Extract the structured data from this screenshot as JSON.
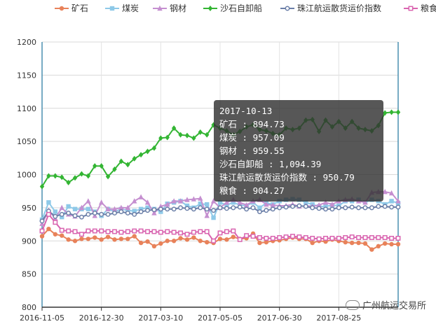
{
  "chart_data": {
    "type": "line",
    "title": "",
    "xlabel": "",
    "ylabel": "",
    "ylim": [
      800,
      1200
    ],
    "yticks": [
      800,
      850,
      900,
      950,
      1000,
      1050,
      1100,
      1150,
      1200
    ],
    "xticks": [
      "2016-11-05",
      "2016-12-30",
      "2017-03-10",
      "2017-05-05",
      "2017-06-30",
      "2017-08-25"
    ],
    "grid": true,
    "legend_position": "top",
    "series": [
      {
        "name": "矿石",
        "color": "#e8825a",
        "marker": "circle",
        "values": [
          907,
          918,
          910,
          908,
          902,
          900,
          903,
          903,
          905,
          902,
          906,
          902,
          903,
          903,
          907,
          897,
          899,
          892,
          896,
          900,
          900,
          904,
          902,
          905,
          900,
          898,
          897,
          903,
          902,
          906,
          903,
          904,
          911,
          897,
          898,
          900,
          901,
          903,
          905,
          903,
          903,
          897,
          900,
          899,
          902,
          900,
          898,
          897,
          897,
          896,
          887,
          892,
          896,
          895,
          895
        ]
      },
      {
        "name": "煤炭",
        "color": "#8ec9e8",
        "marker": "square",
        "values": [
          932,
          958,
          944,
          936,
          952,
          948,
          948,
          948,
          944,
          938,
          948,
          944,
          948,
          946,
          945,
          948,
          950,
          948,
          944,
          956,
          958,
          960,
          953,
          950,
          956,
          955,
          935,
          958,
          954,
          958,
          954,
          953,
          958,
          950,
          957,
          955,
          960,
          962,
          963,
          962,
          958,
          955,
          952,
          952,
          954,
          953,
          960,
          960,
          962,
          958,
          962,
          960,
          955,
          960,
          957
        ]
      },
      {
        "name": "钢材",
        "color": "#c58fd0",
        "marker": "triangle",
        "values": [
          926,
          946,
          934,
          950,
          940,
          937,
          950,
          960,
          938,
          958,
          948,
          948,
          950,
          950,
          960,
          966,
          958,
          942,
          952,
          955,
          960,
          960,
          962,
          963,
          964,
          938,
          960,
          950,
          958,
          962,
          958,
          954,
          960,
          962,
          955,
          954,
          953,
          953,
          955,
          952,
          953,
          952,
          954,
          958,
          955,
          960,
          962,
          963,
          960,
          958,
          973,
          974,
          974,
          972,
          960
        ]
      },
      {
        "name": "沙石自卸船",
        "color": "#33b533",
        "marker": "diamond",
        "values": [
          982,
          998,
          998,
          996,
          988,
          995,
          1001,
          998,
          1013,
          1013,
          997,
          1008,
          1020,
          1015,
          1024,
          1030,
          1035,
          1040,
          1055,
          1056,
          1070,
          1060,
          1059,
          1055,
          1064,
          1060,
          1075,
          1070,
          1066,
          1060,
          1065,
          1072,
          1075,
          1068,
          1066,
          1062,
          1060,
          1070,
          1068,
          1070,
          1082,
          1083,
          1065,
          1082,
          1072,
          1080,
          1070,
          1080,
          1070,
          1068,
          1066,
          1074,
          1093,
          1094,
          1094
        ]
      },
      {
        "name": "珠江航运散货运价指数",
        "color": "#6b7fa8",
        "marker": "ring",
        "values": [
          930,
          945,
          937,
          940,
          942,
          938,
          936,
          940,
          942,
          940,
          940,
          942,
          944,
          942,
          940,
          944,
          946,
          947,
          948,
          948,
          948,
          950,
          949,
          948,
          950,
          948,
          946,
          950,
          949,
          950,
          951,
          948,
          950,
          944,
          946,
          948,
          950,
          951,
          952,
          953,
          952,
          950,
          949,
          948,
          948,
          950,
          950,
          951,
          950,
          950,
          950,
          952,
          952,
          951,
          951
        ]
      },
      {
        "name": "粮食",
        "color": "#d964b0",
        "marker": "square-hollow",
        "values": [
          915,
          940,
          928,
          916,
          915,
          914,
          910,
          915,
          915,
          915,
          914,
          914,
          913,
          914,
          915,
          915,
          914,
          914,
          913,
          914,
          913,
          912,
          910,
          913,
          914,
          914,
          900,
          912,
          914,
          915,
          902,
          908,
          907,
          905,
          904,
          904,
          905,
          906,
          907,
          906,
          905,
          904,
          903,
          904,
          904,
          904,
          905,
          906,
          905,
          905,
          905,
          905,
          905,
          904,
          904
        ]
      }
    ]
  },
  "tooltip": {
    "date": "2017-10-13",
    "rows": [
      "矿石 : 894.73",
      "煤炭 : 957.09",
      "钢材 : 959.55",
      "沙石自卸船 : 1,094.39",
      "珠江航运散货运价指数 : 950.79",
      "粮食 : 904.27"
    ]
  },
  "watermark": {
    "text": "广州航运交易所",
    "icon": "wechat-icon"
  }
}
